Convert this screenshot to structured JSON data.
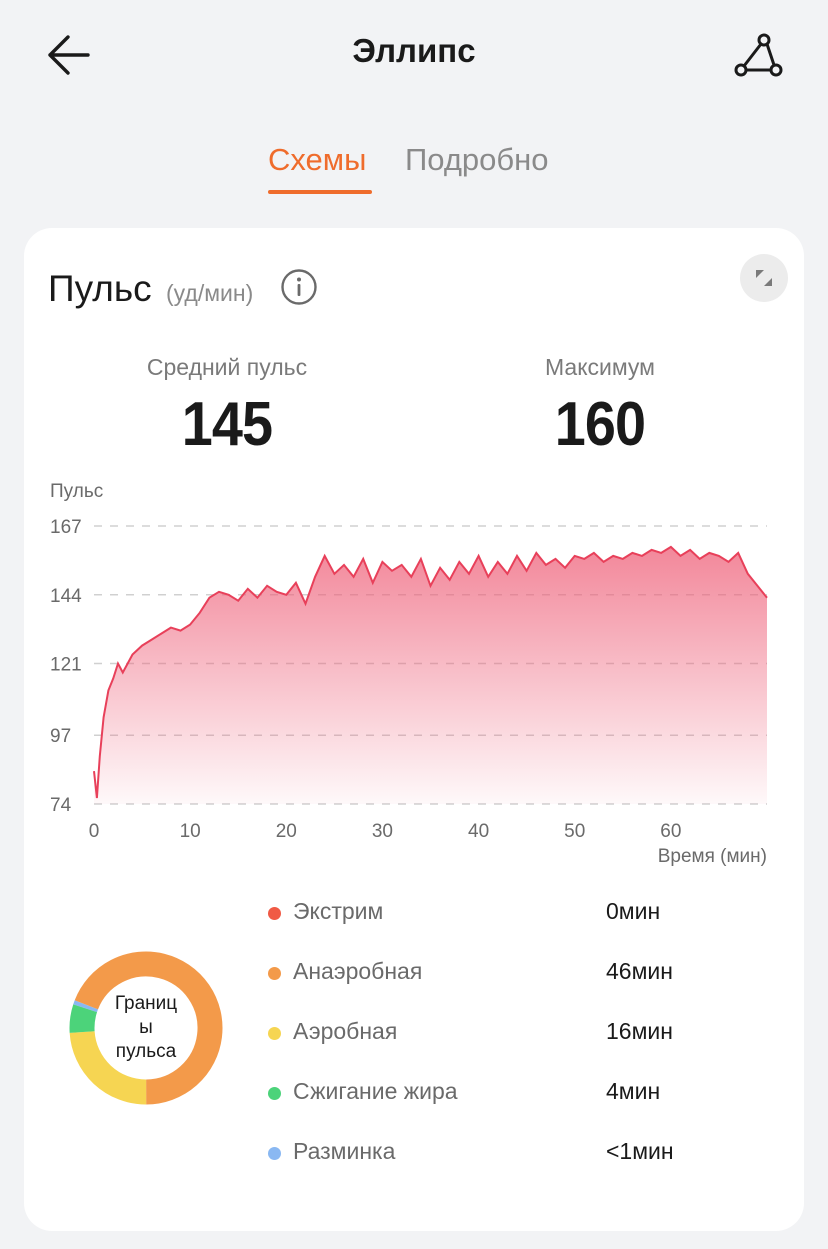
{
  "header": {
    "title": "Эллипс",
    "back_icon": "arrow-left-icon",
    "share_icon": "share-route-icon"
  },
  "tabs": [
    {
      "label": "Схемы",
      "active": true
    },
    {
      "label": "Подробно",
      "active": false
    }
  ],
  "card": {
    "title": "Пульс",
    "unit": "(уд/мин)",
    "info_icon": "info-icon",
    "expand_icon": "expand-icon",
    "stats": {
      "avg_label": "Средний пульс",
      "avg_value": "145",
      "max_label": "Максимум",
      "max_value": "160"
    }
  },
  "chart_data": {
    "type": "area",
    "ylabel": "Пульс",
    "xlabel": "Время (мин)",
    "y_ticks": [
      "167",
      "144",
      "121",
      "97",
      "74"
    ],
    "x_ticks": [
      "0",
      "10",
      "20",
      "30",
      "40",
      "50",
      "60"
    ],
    "ylim": [
      74,
      167
    ],
    "xlim": [
      0,
      70
    ],
    "grid": true,
    "color": "#e8405a",
    "series": [
      {
        "x": [
          0,
          0.3,
          0.6,
          1,
          1.5,
          2,
          2.5,
          3,
          4,
          5,
          6,
          7,
          8,
          9,
          10,
          11,
          12,
          13,
          14,
          15,
          16,
          17,
          18,
          19,
          20,
          21,
          22,
          23,
          24,
          25,
          26,
          27,
          28,
          29,
          30,
          31,
          32,
          33,
          34,
          35,
          36,
          37,
          38,
          39,
          40,
          41,
          42,
          43,
          44,
          45,
          46,
          47,
          48,
          49,
          50,
          51,
          52,
          53,
          54,
          55,
          56,
          57,
          58,
          59,
          60,
          61,
          62,
          63,
          64,
          65,
          66,
          67,
          68,
          69,
          70
        ],
        "y": [
          85,
          76,
          90,
          103,
          112,
          116,
          121,
          118,
          124,
          127,
          129,
          131,
          133,
          132,
          134,
          138,
          143,
          145,
          144,
          142,
          146,
          143,
          147,
          145,
          144,
          148,
          141,
          150,
          157,
          151,
          154,
          150,
          156,
          148,
          155,
          152,
          154,
          150,
          156,
          147,
          153,
          149,
          155,
          151,
          157,
          150,
          155,
          151,
          157,
          152,
          158,
          154,
          156,
          153,
          157,
          156,
          158,
          155,
          157,
          156,
          158,
          157,
          159,
          158,
          160,
          157,
          159,
          156,
          158,
          157,
          155,
          158,
          151,
          147,
          143
        ]
      }
    ]
  },
  "zones": {
    "center_label_lines": [
      "Границ",
      "ы",
      "пульса"
    ],
    "items": [
      {
        "name": "Экстрим",
        "value": "0мин",
        "color": "#f05a45",
        "minutes": 0
      },
      {
        "name": "Анаэробная",
        "value": "46мин",
        "color": "#f39a4a",
        "minutes": 46
      },
      {
        "name": "Аэробная",
        "value": "16мин",
        "color": "#f6d552",
        "minutes": 16
      },
      {
        "name": "Сжигание жира",
        "value": "4мин",
        "color": "#4cd37a",
        "minutes": 4
      },
      {
        "name": "Разминка",
        "value": "<1мин",
        "color": "#8ab8f2",
        "minutes": 0.6
      }
    ]
  }
}
